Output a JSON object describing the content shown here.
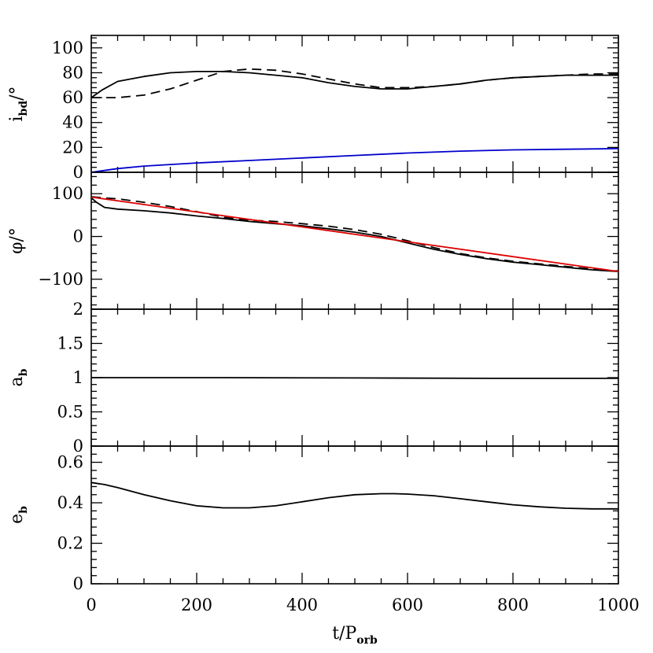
{
  "chart_data": [
    {
      "type": "line",
      "panel": "inclination",
      "ylabel": {
        "main": "i",
        "sub": "bd",
        "unit": "/°"
      },
      "xlim": [
        0,
        1000
      ],
      "ylim": [
        0,
        110
      ],
      "yticks": [
        0,
        20,
        40,
        60,
        80,
        100
      ],
      "ytick_labels": [
        "0",
        "20",
        "40",
        "60",
        "80",
        "100"
      ],
      "series": [
        {
          "style": "solid",
          "color": "#000000",
          "x": [
            0,
            20,
            50,
            100,
            150,
            200,
            250,
            300,
            350,
            400,
            450,
            500,
            550,
            600,
            650,
            700,
            750,
            800,
            850,
            900,
            950,
            1000
          ],
          "y": [
            60,
            66,
            73,
            77,
            80,
            81,
            81,
            80,
            78,
            76,
            72,
            69,
            67,
            67,
            69,
            71,
            74,
            76,
            77,
            78,
            78,
            78
          ]
        },
        {
          "style": "dashed",
          "color": "#000000",
          "x": [
            0,
            50,
            100,
            150,
            200,
            250,
            300,
            350,
            400,
            450,
            500,
            550,
            600,
            650,
            700,
            750,
            800,
            850,
            900,
            950,
            1000
          ],
          "y": [
            60,
            60,
            62,
            67,
            74,
            81,
            83,
            82,
            79,
            75,
            71,
            68,
            68,
            69,
            71,
            74,
            76,
            77,
            78,
            79,
            79
          ]
        },
        {
          "style": "solid",
          "color": "#0000cc",
          "x": [
            0,
            50,
            100,
            200,
            300,
            400,
            500,
            600,
            700,
            800,
            900,
            1000
          ],
          "y": [
            0,
            3,
            5,
            7.5,
            9.5,
            11.5,
            13.5,
            15.5,
            17,
            18,
            18.5,
            19
          ]
        }
      ]
    },
    {
      "type": "line",
      "panel": "phase",
      "ylabel": {
        "main": "φ",
        "sub": "",
        "unit": "/°"
      },
      "xlim": [
        0,
        1000
      ],
      "ylim": [
        -170,
        150
      ],
      "yticks": [
        -100,
        0,
        100
      ],
      "ytick_labels": [
        "−100",
        "0",
        "100"
      ],
      "series": [
        {
          "style": "solid",
          "color": "#000000",
          "x": [
            0,
            10,
            25,
            50,
            100,
            150,
            200,
            250,
            300,
            350,
            400,
            450,
            500,
            550,
            600,
            650,
            700,
            750,
            800,
            850,
            900,
            950,
            1000
          ],
          "y": [
            90,
            80,
            68,
            64,
            60,
            55,
            48,
            42,
            35,
            30,
            25,
            18,
            10,
            0,
            -15,
            -30,
            -42,
            -52,
            -60,
            -66,
            -72,
            -78,
            -82
          ]
        },
        {
          "style": "dashed",
          "color": "#000000",
          "x": [
            0,
            25,
            50,
            100,
            150,
            200,
            250,
            300,
            350,
            400,
            450,
            500,
            550,
            600,
            650,
            700,
            750,
            800,
            850,
            900,
            950,
            1000
          ],
          "y": [
            93,
            90,
            88,
            80,
            70,
            58,
            45,
            38,
            35,
            30,
            24,
            16,
            5,
            -10,
            -26,
            -40,
            -50,
            -58,
            -64,
            -70,
            -76,
            -82
          ]
        },
        {
          "style": "solid",
          "color": "#dd0000",
          "x": [
            0,
            1000
          ],
          "y": [
            92,
            -82
          ]
        }
      ]
    },
    {
      "type": "line",
      "panel": "semi-major axis",
      "ylabel": {
        "main": "a",
        "sub": "b",
        "unit": ""
      },
      "xlim": [
        0,
        1000
      ],
      "ylim": [
        0,
        2
      ],
      "yticks": [
        0,
        0.5,
        1,
        1.5,
        2
      ],
      "ytick_labels": [
        "0",
        "0.5",
        "1",
        "1.5",
        "2"
      ],
      "series": [
        {
          "style": "solid",
          "color": "#000000",
          "x": [
            0,
            250,
            500,
            750,
            1000
          ],
          "y": [
            1.0,
            1.0,
            0.995,
            0.99,
            0.99
          ]
        }
      ]
    },
    {
      "type": "line",
      "panel": "eccentricity",
      "ylabel": {
        "main": "e",
        "sub": "b",
        "unit": ""
      },
      "xlabel": {
        "main": "t/P",
        "sub": "orb"
      },
      "xlim": [
        0,
        1000
      ],
      "xticks": [
        0,
        200,
        400,
        600,
        800,
        1000
      ],
      "xtick_labels": [
        "0",
        "200",
        "400",
        "600",
        "800",
        "1000"
      ],
      "ylim": [
        0,
        0.68
      ],
      "yticks": [
        0,
        0.2,
        0.4,
        0.6
      ],
      "ytick_labels": [
        "0",
        "0.2",
        "0.4",
        "0.6"
      ],
      "series": [
        {
          "style": "solid",
          "color": "#000000",
          "x": [
            0,
            25,
            50,
            100,
            150,
            200,
            250,
            300,
            350,
            400,
            450,
            500,
            550,
            575,
            600,
            650,
            700,
            750,
            800,
            850,
            900,
            950,
            1000
          ],
          "y": [
            0.5,
            0.49,
            0.475,
            0.44,
            0.41,
            0.385,
            0.375,
            0.375,
            0.385,
            0.405,
            0.425,
            0.44,
            0.445,
            0.445,
            0.443,
            0.435,
            0.42,
            0.405,
            0.39,
            0.38,
            0.373,
            0.37,
            0.37
          ]
        }
      ]
    }
  ]
}
